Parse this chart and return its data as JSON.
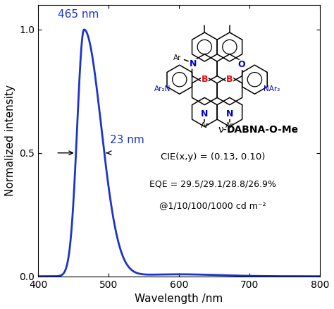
{
  "title": "",
  "xlabel": "Wavelength /nm",
  "ylabel": "Normalized intensity",
  "xlim": [
    400,
    800
  ],
  "ylim": [
    0.0,
    1.1
  ],
  "yticks": [
    0.0,
    0.5,
    1.0
  ],
  "xticks": [
    400,
    500,
    600,
    700,
    800
  ],
  "peak_wl": 465,
  "fwhm_nm": 23,
  "line_color": "#1a35cc",
  "peak_label": "465 nm",
  "fwhm_label": "23 nm",
  "fwhm_label_color": "#1a35cc",
  "peak_label_color": "#1a35cc",
  "cie_text": "CIE(x,y) = (0.13, 0.10)",
  "eqe_line1": "EQE = 29.5/29.1/28.8/26.9%",
  "eqe_line2": "@1/10/100/1000 cd m⁻²",
  "background_color": "#ffffff",
  "label_fontsize": 11,
  "tick_fontsize": 10,
  "annotation_fontsize": 10
}
